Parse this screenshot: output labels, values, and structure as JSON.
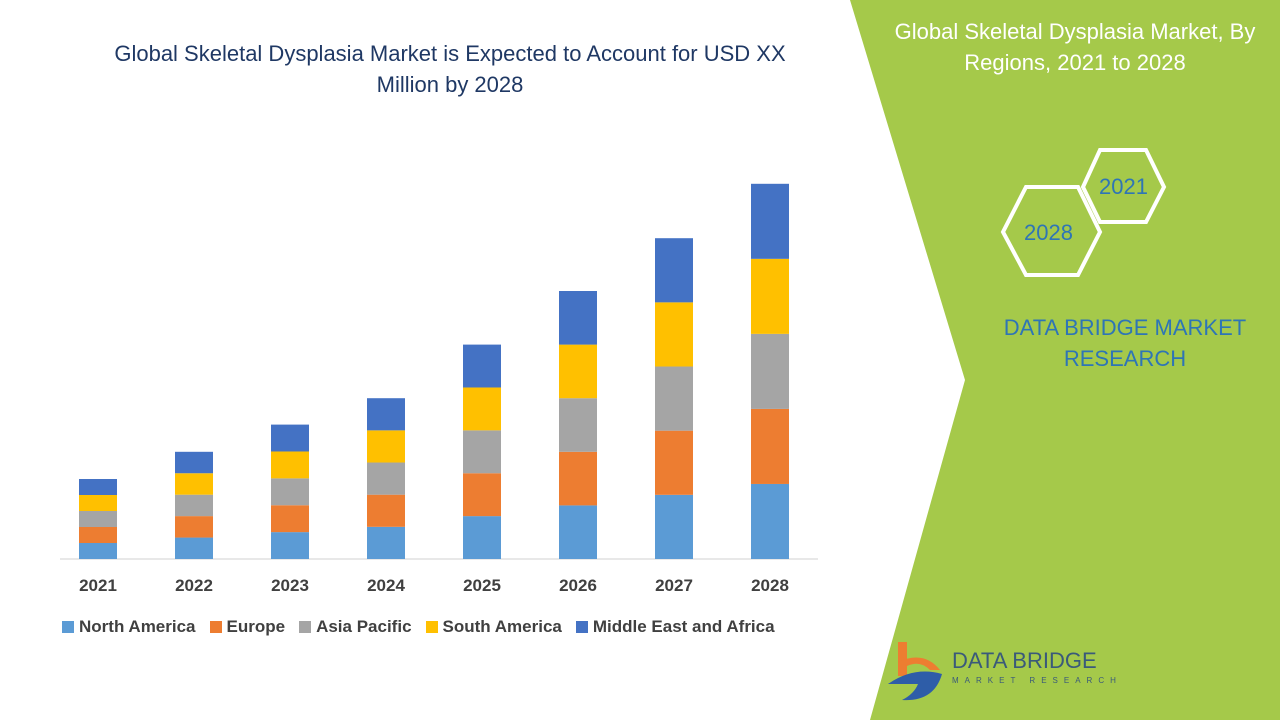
{
  "title": "Global Skeletal Dysplasia Market is Expected to Account for USD XX Million by 2028",
  "side_panel": {
    "title": "Global Skeletal Dysplasia Market, By Regions, 2021 to 2028",
    "hex_years": [
      "2021",
      "2028"
    ],
    "brand_text": "DATA BRIDGE MARKET RESEARCH",
    "accent_color": "#a5c94a"
  },
  "logo": {
    "name": "DATA BRIDGE",
    "sub": "MARKET RESEARCH"
  },
  "chart_data": {
    "type": "bar",
    "stacked": true,
    "title": "Global Skeletal Dysplasia Market is Expected to Account for USD XX Million by 2028",
    "categories": [
      "2021",
      "2022",
      "2023",
      "2024",
      "2025",
      "2026",
      "2027",
      "2028"
    ],
    "series": [
      {
        "name": "North America",
        "color": "#5b9bd5",
        "values": [
          1.0,
          1.34,
          1.68,
          2.01,
          2.68,
          3.35,
          4.01,
          4.69
        ]
      },
      {
        "name": "Europe",
        "color": "#ed7d31",
        "values": [
          1.0,
          1.34,
          1.68,
          2.01,
          2.68,
          3.35,
          4.01,
          4.69
        ]
      },
      {
        "name": "Asia Pacific",
        "color": "#a5a5a5",
        "values": [
          1.0,
          1.34,
          1.68,
          2.01,
          2.68,
          3.35,
          4.01,
          4.69
        ]
      },
      {
        "name": "South America",
        "color": "#ffc000",
        "values": [
          1.0,
          1.34,
          1.68,
          2.01,
          2.68,
          3.35,
          4.01,
          4.69
        ]
      },
      {
        "name": "Middle East and Africa",
        "color": "#4472c4",
        "values": [
          1.0,
          1.34,
          1.68,
          2.01,
          2.68,
          3.35,
          4.01,
          4.69
        ]
      }
    ],
    "xlabel": "",
    "ylabel": "",
    "grid": false,
    "legend": "bottom"
  }
}
